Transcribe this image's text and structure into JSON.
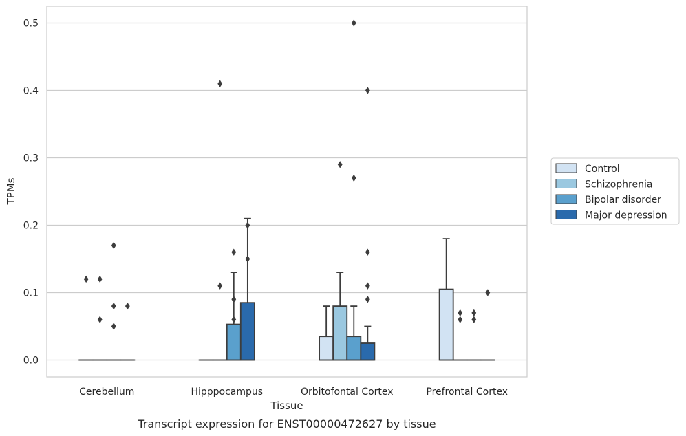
{
  "chart_data": {
    "type": "box",
    "title": "",
    "caption": "Transcript expression for ENST00000472627 by tissue",
    "xlabel": "Tissue",
    "ylabel": "TPMs",
    "ylim": [
      -0.025,
      0.525
    ],
    "yticks": [
      0.0,
      0.1,
      0.2,
      0.3,
      0.4,
      0.5
    ],
    "ytick_labels": [
      "0.0",
      "0.1",
      "0.2",
      "0.3",
      "0.4",
      "0.5"
    ],
    "grid": "horizontal",
    "legend_position": "right",
    "categories": [
      "Cerebellum",
      "Hipppocampus",
      "Orbitofontal Cortex",
      "Prefrontal Cortex"
    ],
    "series": [
      {
        "name": "Control",
        "color": "#d2e3f3",
        "boxes": [
          {
            "q1": 0,
            "median": 0,
            "q3": 0,
            "whisker_low": 0,
            "whisker_high": 0,
            "outliers": [
              0.12
            ]
          },
          {
            "q1": 0,
            "median": 0,
            "q3": 0,
            "whisker_low": 0,
            "whisker_high": 0,
            "outliers": []
          },
          {
            "q1": 0,
            "median": 0,
            "q3": 0.035,
            "whisker_low": 0,
            "whisker_high": 0.08,
            "outliers": []
          },
          {
            "q1": 0,
            "median": 0,
            "q3": 0.105,
            "whisker_low": 0,
            "whisker_high": 0.18,
            "outliers": []
          }
        ]
      },
      {
        "name": "Schizophrenia",
        "color": "#9ac8e0",
        "boxes": [
          {
            "q1": 0,
            "median": 0,
            "q3": 0,
            "whisker_low": 0,
            "whisker_high": 0,
            "outliers": [
              0.06,
              0.12
            ]
          },
          {
            "q1": 0,
            "median": 0,
            "q3": 0,
            "whisker_low": 0,
            "whisker_high": 0,
            "outliers": [
              0.41,
              0.11
            ]
          },
          {
            "q1": 0,
            "median": 0,
            "q3": 0.08,
            "whisker_low": 0,
            "whisker_high": 0.13,
            "outliers": [
              0.29
            ]
          },
          {
            "q1": 0,
            "median": 0,
            "q3": 0,
            "whisker_low": 0,
            "whisker_high": 0,
            "outliers": [
              0.07,
              0.06
            ]
          }
        ]
      },
      {
        "name": "Bipolar disorder",
        "color": "#5aa0cd",
        "boxes": [
          {
            "q1": 0,
            "median": 0,
            "q3": 0,
            "whisker_low": 0,
            "whisker_high": 0,
            "outliers": [
              0.17,
              0.08,
              0.05
            ]
          },
          {
            "q1": 0,
            "median": 0,
            "q3": 0.053,
            "whisker_low": 0,
            "whisker_high": 0.13,
            "outliers": [
              0.16,
              0.09,
              0.06
            ]
          },
          {
            "q1": 0,
            "median": 0,
            "q3": 0.035,
            "whisker_low": 0,
            "whisker_high": 0.08,
            "outliers": [
              0.5,
              0.27
            ]
          },
          {
            "q1": 0,
            "median": 0,
            "q3": 0,
            "whisker_low": 0,
            "whisker_high": 0,
            "outliers": [
              0.07,
              0.06
            ]
          }
        ]
      },
      {
        "name": "Major depression",
        "color": "#2a6aac",
        "boxes": [
          {
            "q1": 0,
            "median": 0,
            "q3": 0,
            "whisker_low": 0,
            "whisker_high": 0,
            "outliers": [
              0.08
            ]
          },
          {
            "q1": 0,
            "median": 0,
            "q3": 0.085,
            "whisker_low": 0,
            "whisker_high": 0.21,
            "outliers": [
              0.2,
              0.15
            ]
          },
          {
            "q1": 0,
            "median": 0,
            "q3": 0.025,
            "whisker_low": 0,
            "whisker_high": 0.05,
            "outliers": [
              0.4,
              0.16
            ]
          },
          {
            "q1": 0,
            "median": 0,
            "q3": 0,
            "whisker_low": 0,
            "whisker_high": 0,
            "outliers": [
              0.1
            ]
          }
        ]
      }
    ],
    "extra_outliers": [
      {
        "category": 2,
        "series": 3,
        "values": [
          0.11,
          0.09
        ]
      }
    ]
  }
}
